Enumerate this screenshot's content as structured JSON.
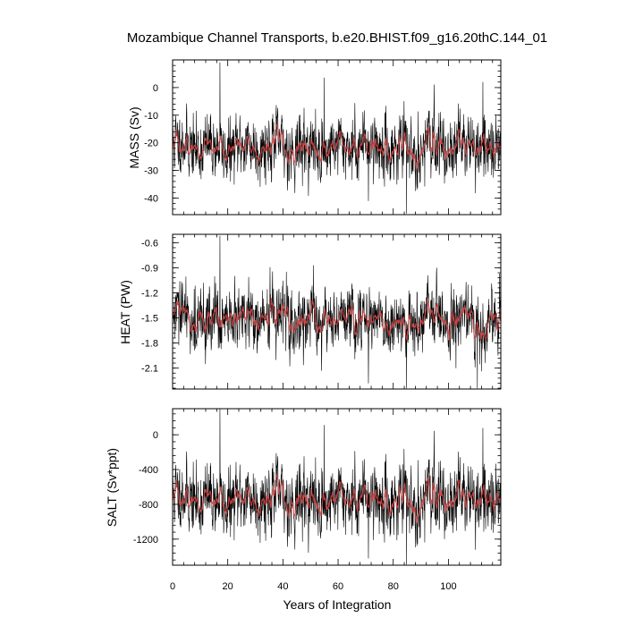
{
  "chart_data": {
    "type": "line",
    "title": "Mozambique Channel Transports, b.e20.BHIST.f09_g16.20thC.144_01",
    "xlabel": "Years of Integration",
    "x_ticks": [
      0,
      20,
      40,
      60,
      80,
      100
    ],
    "xlim": [
      0,
      119
    ],
    "colors": {
      "raw": "#000000",
      "smooth": "#d24545"
    },
    "panels": [
      {
        "ylabel": "MASS (Sv)",
        "ylim": [
          -46,
          10
        ],
        "y_ticks": [
          0,
          -10,
          -20,
          -30,
          -40
        ],
        "y_tick_labels": [
          "0",
          "-10",
          "-20",
          "-30",
          "-40"
        ],
        "series": [
          {
            "style": "raw-monthly",
            "mean": -21.5,
            "spread": 5.6,
            "seed": 11,
            "spikes": [
              [
                17.2,
                9.0
              ],
              [
                55.0,
                3.5
              ],
              [
                84.8,
                -45.5
              ],
              [
                71.0,
                -41.0
              ]
            ]
          },
          {
            "style": "running-mean",
            "approx_level": -21.0
          }
        ]
      },
      {
        "ylabel": "HEAT (PW)",
        "ylim": [
          -2.35,
          -0.5
        ],
        "y_ticks": [
          -0.6,
          -0.9,
          -1.2,
          -1.5,
          -1.8,
          -2.1
        ],
        "y_tick_labels": [
          "-0.6",
          "-0.9",
          "-1.2",
          "-1.5",
          "-1.8",
          "-2.1"
        ],
        "series": [
          {
            "style": "raw-monthly",
            "mean": -1.52,
            "spread": 0.19,
            "seed": 29,
            "spikes": [
              [
                17.2,
                -0.52
              ],
              [
                84.8,
                -2.34
              ],
              [
                110.5,
                -2.34
              ],
              [
                71.0,
                -2.28
              ]
            ]
          },
          {
            "style": "running-mean",
            "approx_level": -1.5
          }
        ]
      },
      {
        "ylabel": "SALT (Sv*ppt)",
        "ylim": [
          -1500,
          300
        ],
        "y_ticks": [
          0,
          -400,
          -800,
          -1200
        ],
        "y_tick_labels": [
          "0",
          "-400",
          "-800",
          "-1200"
        ],
        "series": [
          {
            "style": "raw-monthly",
            "mean": -740,
            "spread": 195,
            "seed": 11,
            "spikes": [
              [
                17.2,
                300
              ],
              [
                55.0,
                110
              ],
              [
                84.8,
                -1490
              ],
              [
                71.0,
                -1420
              ]
            ]
          },
          {
            "style": "running-mean",
            "approx_level": -730
          }
        ]
      }
    ]
  }
}
